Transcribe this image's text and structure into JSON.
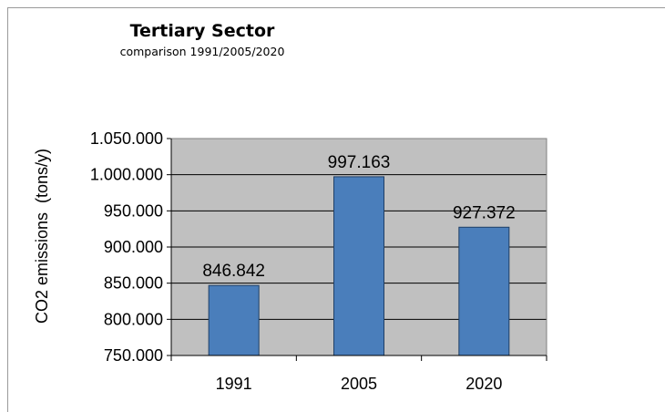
{
  "chart_data": {
    "type": "bar",
    "title": "Tertiary Sector",
    "subtitle": "comparison 1991/2005/2020",
    "xlabel": "",
    "ylabel": "CO2 emissions  (tons/y)",
    "categories": [
      "1991",
      "2005",
      "2020"
    ],
    "values": [
      846842,
      997163,
      927372
    ],
    "value_labels": [
      "846.842",
      "997.163",
      "927.372"
    ],
    "ylim": [
      750000,
      1050000
    ],
    "yticks": [
      750000,
      800000,
      850000,
      900000,
      950000,
      1000000,
      1050000
    ],
    "ytick_labels": [
      "750.000",
      "800.000",
      "850.000",
      "900.000",
      "950.000",
      "1.000.000",
      "1.050.000"
    ],
    "grid": true,
    "legend": "none",
    "colors": {
      "bar_fill": "#4a7ebb",
      "bar_stroke": "#1f3f66",
      "plot_background": "#c0c0c0",
      "gridline": "#000000"
    }
  }
}
